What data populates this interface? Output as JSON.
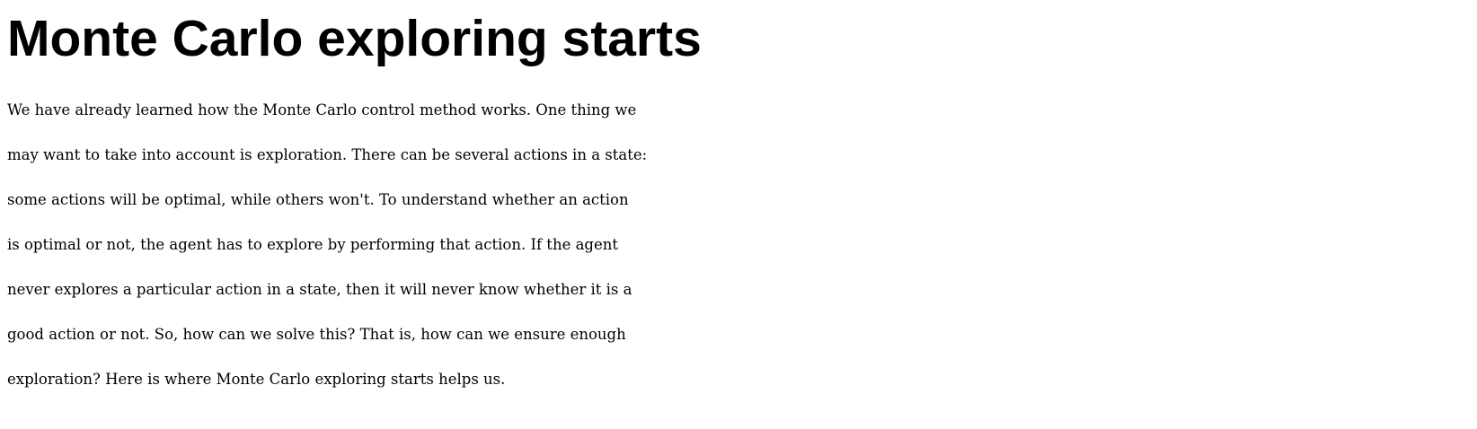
{
  "section": {
    "title": "Monte Carlo exploring starts",
    "paragraph_lines": [
      "We have already learned how the Monte Carlo control method works. One thing we",
      "may want to take into account is exploration. There can be several actions in a state:",
      "some actions will be optimal, while others won't. To understand whether an action",
      "is optimal or not, the agent has to explore by performing that action. If the agent",
      "never explores a particular action in a state, then it will never know whether it is a",
      "good action or not. So, how can we solve this? That is, how can we ensure enough",
      "exploration? Here is where Monte Carlo exploring starts helps us."
    ]
  }
}
